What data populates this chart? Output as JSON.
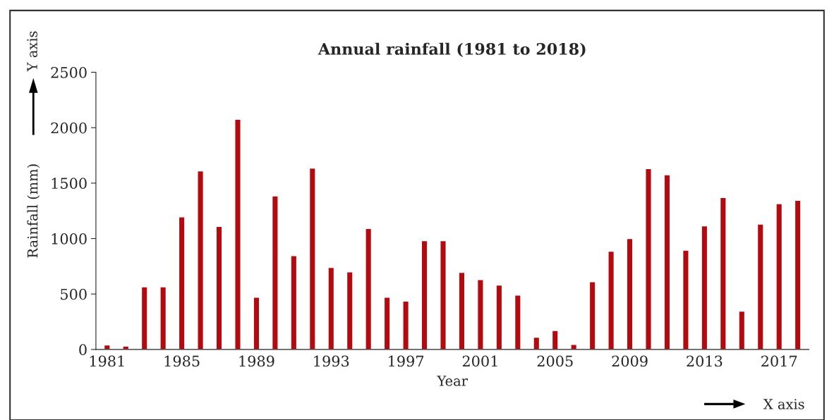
{
  "chart_data": {
    "type": "bar",
    "title": "Annual rainfall (1981 to 2018)",
    "xlabel": "Year",
    "ylabel": "Rainfall (mm)",
    "categories": [
      "1981",
      null,
      null,
      null,
      "1985",
      null,
      null,
      null,
      "1989",
      null,
      null,
      null,
      "1993",
      null,
      null,
      null,
      "1997",
      null,
      null,
      null,
      "2001",
      null,
      null,
      null,
      "2005",
      null,
      null,
      null,
      "2009",
      null,
      null,
      null,
      "2013",
      null,
      null,
      null,
      "2017",
      null
    ],
    "values": [
      40,
      30,
      565,
      565,
      1195,
      1610,
      1110,
      2075,
      470,
      1385,
      845,
      1635,
      740,
      700,
      1090,
      470,
      435,
      980,
      980,
      695,
      630,
      580,
      490,
      110,
      170,
      45,
      610,
      885,
      1000,
      1630,
      1575,
      895,
      1115,
      1370,
      345,
      1130,
      1315,
      1345
    ],
    "color": "#b30a0f",
    "ylim": [
      0,
      2500
    ],
    "yticks": [
      0,
      500,
      1000,
      1500,
      2000,
      2500
    ],
    "grid": false,
    "annotations": [
      "Y axis",
      "X axis"
    ]
  }
}
